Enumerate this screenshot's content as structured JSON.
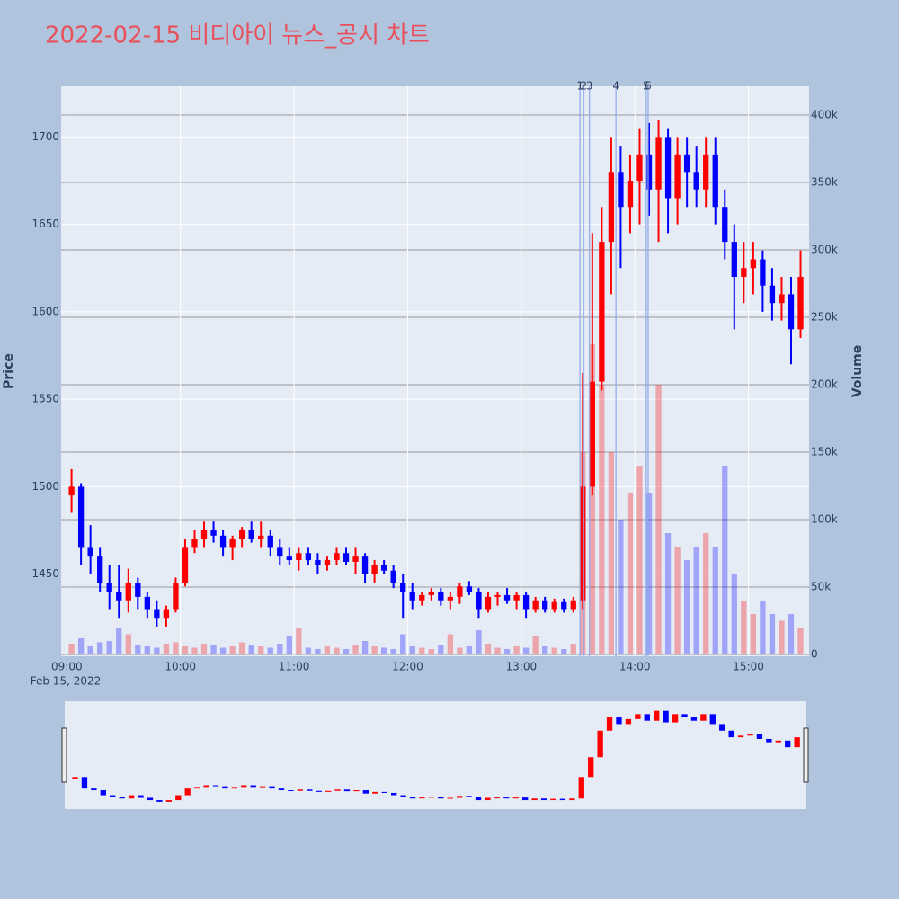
{
  "chart_data": {
    "type": "candlestick",
    "title": "2022-02-15 비디아이 뉴스_공시 차트",
    "yaxis_title": "Price",
    "y2axis_title": "Volume",
    "x_date_label": "Feb 15, 2022",
    "up_color": "#ff0000",
    "down_color": "#0000ff",
    "xlim": [
      "2022-02-15 08:57",
      "2022-02-15 15:32"
    ],
    "xticks": [
      {
        "value": "2022-02-15 09:00",
        "label": "09:00"
      },
      {
        "value": "2022-02-15 10:00",
        "label": "10:00"
      },
      {
        "value": "2022-02-15 11:00",
        "label": "11:00"
      },
      {
        "value": "2022-02-15 12:00",
        "label": "12:00"
      },
      {
        "value": "2022-02-15 13:00",
        "label": "13:00"
      },
      {
        "value": "2022-02-15 14:00",
        "label": "14:00"
      },
      {
        "value": "2022-02-15 15:00",
        "label": "15:00"
      }
    ],
    "ylim": [
      1403,
      1729
    ],
    "yticks": [
      1450,
      1500,
      1550,
      1600,
      1650,
      1700
    ],
    "y2lim": [
      -1333,
      421333
    ],
    "y2ticks": [
      0,
      {
        "value": 50000,
        "label": "50k"
      },
      {
        "value": 100000,
        "label": "100k"
      },
      {
        "value": 150000,
        "label": "150k"
      },
      {
        "value": 200000,
        "label": "200k"
      },
      {
        "value": 250000,
        "label": "250k"
      },
      {
        "value": 300000,
        "label": "300k"
      },
      {
        "value": 350000,
        "label": "350k"
      },
      {
        "value": 400000,
        "label": "400k"
      }
    ],
    "annotations": [
      {
        "x": "2022-02-15 13:31",
        "text": "1"
      },
      {
        "x": "2022-02-15 13:33",
        "text": "2"
      },
      {
        "x": "2022-02-15 13:36",
        "text": "3"
      },
      {
        "x": "2022-02-15 13:50",
        "text": "4"
      },
      {
        "x": "2022-02-15 14:06",
        "text": "5"
      },
      {
        "x": "2022-02-15 14:07",
        "text": "6"
      }
    ],
    "x": [
      "2022-02-15 09:00",
      "2022-02-15 09:05",
      "2022-02-15 09:10",
      "2022-02-15 09:15",
      "2022-02-15 09:20",
      "2022-02-15 09:25",
      "2022-02-15 09:30",
      "2022-02-15 09:35",
      "2022-02-15 09:40",
      "2022-02-15 09:45",
      "2022-02-15 09:50",
      "2022-02-15 09:55",
      "2022-02-15 10:00",
      "2022-02-15 10:05",
      "2022-02-15 10:10",
      "2022-02-15 10:15",
      "2022-02-15 10:20",
      "2022-02-15 10:25",
      "2022-02-15 10:30",
      "2022-02-15 10:35",
      "2022-02-15 10:40",
      "2022-02-15 10:45",
      "2022-02-15 10:50",
      "2022-02-15 10:55",
      "2022-02-15 11:00",
      "2022-02-15 11:05",
      "2022-02-15 11:10",
      "2022-02-15 11:15",
      "2022-02-15 11:20",
      "2022-02-15 11:25",
      "2022-02-15 11:30",
      "2022-02-15 11:35",
      "2022-02-15 11:40",
      "2022-02-15 11:45",
      "2022-02-15 11:50",
      "2022-02-15 11:55",
      "2022-02-15 12:00",
      "2022-02-15 12:05",
      "2022-02-15 12:10",
      "2022-02-15 12:15",
      "2022-02-15 12:20",
      "2022-02-15 12:25",
      "2022-02-15 12:30",
      "2022-02-15 12:35",
      "2022-02-15 12:40",
      "2022-02-15 12:45",
      "2022-02-15 12:50",
      "2022-02-15 12:55",
      "2022-02-15 13:00",
      "2022-02-15 13:05",
      "2022-02-15 13:10",
      "2022-02-15 13:15",
      "2022-02-15 13:20",
      "2022-02-15 13:25",
      "2022-02-15 13:30",
      "2022-02-15 13:35",
      "2022-02-15 13:40",
      "2022-02-15 13:45",
      "2022-02-15 13:50",
      "2022-02-15 13:55",
      "2022-02-15 14:00",
      "2022-02-15 14:05",
      "2022-02-15 14:10",
      "2022-02-15 14:15",
      "2022-02-15 14:20",
      "2022-02-15 14:25",
      "2022-02-15 14:30",
      "2022-02-15 14:35",
      "2022-02-15 14:40",
      "2022-02-15 14:45",
      "2022-02-15 14:50",
      "2022-02-15 14:55",
      "2022-02-15 15:00",
      "2022-02-15 15:05",
      "2022-02-15 15:10",
      "2022-02-15 15:15",
      "2022-02-15 15:20",
      "2022-02-15 15:25"
    ],
    "open": [
      1495,
      1500,
      1465,
      1460,
      1445,
      1440,
      1435,
      1445,
      1437,
      1430,
      1425,
      1430,
      1445,
      1465,
      1470,
      1475,
      1472,
      1465,
      1470,
      1475,
      1470,
      1472,
      1465,
      1460,
      1458,
      1462,
      1458,
      1455,
      1458,
      1462,
      1457,
      1460,
      1450,
      1455,
      1452,
      1445,
      1440,
      1435,
      1438,
      1440,
      1435,
      1437,
      1443,
      1440,
      1430,
      1437,
      1438,
      1435,
      1438,
      1430,
      1435,
      1430,
      1434,
      1430,
      1435,
      1500,
      1560,
      1640,
      1680,
      1660,
      1675,
      1690,
      1670,
      1700,
      1665,
      1690,
      1680,
      1670,
      1690,
      1660,
      1640,
      1620,
      1625,
      1630,
      1615,
      1605,
      1610,
      1590
    ],
    "high": [
      1510,
      1502,
      1478,
      1465,
      1455,
      1455,
      1453,
      1448,
      1440,
      1435,
      1432,
      1448,
      1470,
      1475,
      1480,
      1480,
      1475,
      1472,
      1477,
      1480,
      1480,
      1475,
      1470,
      1465,
      1465,
      1465,
      1462,
      1460,
      1465,
      1465,
      1465,
      1462,
      1458,
      1458,
      1455,
      1450,
      1445,
      1440,
      1442,
      1442,
      1440,
      1445,
      1446,
      1442,
      1440,
      1440,
      1442,
      1440,
      1440,
      1437,
      1437,
      1436,
      1436,
      1437,
      1565,
      1645,
      1660,
      1700,
      1695,
      1690,
      1705,
      1708,
      1710,
      1705,
      1700,
      1700,
      1695,
      1700,
      1700,
      1670,
      1650,
      1640,
      1640,
      1635,
      1625,
      1620,
      1620,
      1635
    ],
    "low": [
      1485,
      1455,
      1450,
      1440,
      1430,
      1425,
      1428,
      1430,
      1425,
      1420,
      1420,
      1428,
      1443,
      1462,
      1465,
      1468,
      1460,
      1458,
      1465,
      1468,
      1465,
      1460,
      1455,
      1455,
      1452,
      1455,
      1450,
      1452,
      1455,
      1455,
      1450,
      1445,
      1445,
      1450,
      1442,
      1425,
      1430,
      1432,
      1435,
      1432,
      1430,
      1433,
      1438,
      1425,
      1428,
      1432,
      1433,
      1430,
      1425,
      1428,
      1428,
      1428,
      1428,
      1428,
      1430,
      1495,
      1555,
      1610,
      1625,
      1645,
      1650,
      1655,
      1640,
      1645,
      1650,
      1660,
      1660,
      1660,
      1650,
      1630,
      1590,
      1605,
      1610,
      1600,
      1595,
      1595,
      1570,
      1585
    ],
    "close": [
      1500,
      1465,
      1460,
      1445,
      1440,
      1435,
      1445,
      1437,
      1430,
      1425,
      1430,
      1445,
      1465,
      1470,
      1475,
      1472,
      1465,
      1470,
      1475,
      1470,
      1472,
      1465,
      1460,
      1458,
      1462,
      1458,
      1455,
      1458,
      1462,
      1457,
      1460,
      1450,
      1455,
      1452,
      1445,
      1440,
      1435,
      1438,
      1440,
      1435,
      1437,
      1443,
      1440,
      1430,
      1437,
      1438,
      1435,
      1438,
      1430,
      1435,
      1430,
      1434,
      1430,
      1435,
      1500,
      1560,
      1640,
      1680,
      1660,
      1675,
      1690,
      1670,
      1700,
      1665,
      1690,
      1680,
      1670,
      1690,
      1660,
      1640,
      1620,
      1625,
      1630,
      1615,
      1605,
      1610,
      1590,
      1620
    ],
    "volume": [
      8000,
      12000,
      6000,
      9000,
      10000,
      20000,
      15000,
      7000,
      6000,
      5000,
      8000,
      9000,
      6000,
      5000,
      8000,
      7000,
      5000,
      6000,
      9000,
      7000,
      6000,
      5000,
      8000,
      14000,
      20000,
      5000,
      4000,
      6000,
      5000,
      4000,
      7000,
      10000,
      6000,
      5000,
      4000,
      15000,
      6000,
      5000,
      4000,
      7000,
      15000,
      5000,
      6000,
      18000,
      8000,
      5000,
      4000,
      6000,
      5000,
      14000,
      6000,
      5000,
      4000,
      8000,
      150000,
      230000,
      200000,
      150000,
      100000,
      120000,
      140000,
      120000,
      200000,
      90000,
      80000,
      70000,
      80000,
      90000,
      80000,
      140000,
      60000,
      40000,
      30000,
      40000,
      30000,
      25000,
      30000,
      20000
    ]
  }
}
